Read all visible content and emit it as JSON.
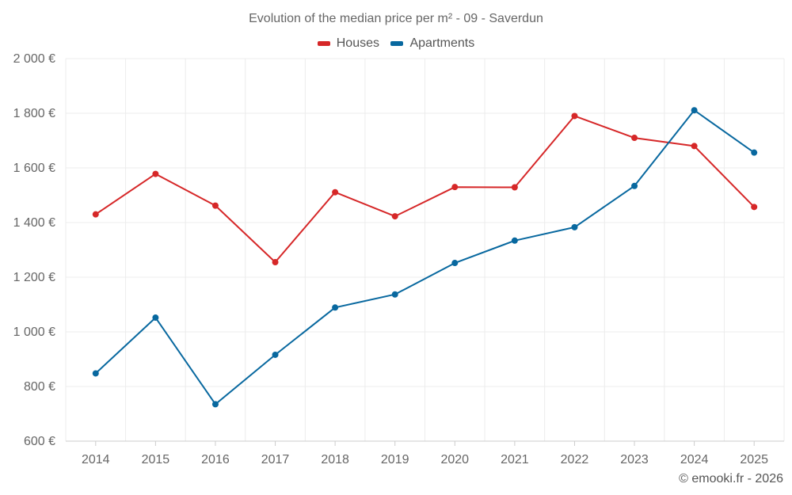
{
  "chart_data": {
    "type": "line",
    "title": "Evolution of the median price per m² - 09 - Saverdun",
    "categories": [
      "2014",
      "2015",
      "2016",
      "2017",
      "2018",
      "2019",
      "2020",
      "2021",
      "2022",
      "2023",
      "2024",
      "2025"
    ],
    "series": [
      {
        "name": "Houses",
        "color": "#d62728",
        "values": [
          1430,
          1578,
          1462,
          1255,
          1511,
          1423,
          1530,
          1529,
          1790,
          1710,
          1680,
          1457
        ]
      },
      {
        "name": "Apartments",
        "color": "#08689f",
        "values": [
          848,
          1052,
          735,
          916,
          1089,
          1137,
          1252,
          1334,
          1383,
          1534,
          1811,
          1656
        ]
      }
    ],
    "y_ticks": [
      "600 €",
      "800 €",
      "1 000 €",
      "1 200 €",
      "1 400 €",
      "1 600 €",
      "1 800 €",
      "2 000 €"
    ],
    "ylim": [
      600,
      2000
    ],
    "xlabel": "",
    "ylabel": "",
    "grid": true,
    "legend_position": "top-center"
  },
  "credit": "© emooki.fr - 2026"
}
